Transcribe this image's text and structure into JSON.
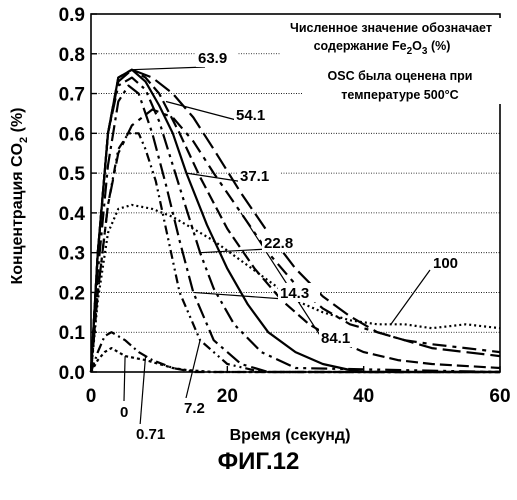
{
  "caption": "ФИГ.12",
  "chart_data": {
    "type": "line",
    "title": "",
    "xlabel": "Время (секунд)",
    "ylabel": "Концентрация CO",
    "ylabel_sub": "2",
    "ylabel_unit": " (%)",
    "xlim": [
      0,
      60
    ],
    "ylim": [
      0,
      0.9
    ],
    "xticks": [
      0,
      20,
      40,
      60
    ],
    "yticks": [
      0.0,
      0.1,
      0.2,
      0.3,
      0.4,
      0.5,
      0.6,
      0.7,
      0.8,
      0.9
    ],
    "ytick_labels": [
      "0.0",
      "0.1",
      "0.2",
      "0.3",
      "0.4",
      "0.5",
      "0.6",
      "0.7",
      "0.8",
      "0.9"
    ],
    "grid": "horizontal",
    "annotation_lines": [
      {
        "pre": "Численное значение обозначает",
        "sub": "",
        "post": ""
      },
      {
        "pre": "содержание Fe",
        "sub": "2",
        "mid": "O",
        "sub2": "3",
        "post": " (%)"
      },
      {
        "pre": "OSC была оценена при",
        "sub": "",
        "post": ""
      },
      {
        "pre": "температуре 500°C",
        "sub": "",
        "post": ""
      }
    ],
    "series": [
      {
        "name": "0",
        "dash": "3,3",
        "x": [
          0,
          1,
          2,
          3,
          5,
          8,
          10,
          12,
          14,
          18,
          60
        ],
        "y": [
          0,
          0.03,
          0.05,
          0.06,
          0.04,
          0.03,
          0.02,
          0.01,
          0.005,
          0,
          0
        ]
      },
      {
        "name": "0.71",
        "dash": "10,4,2,4",
        "x": [
          0,
          1,
          2,
          3,
          5,
          7,
          9,
          12,
          15,
          60
        ],
        "y": [
          0,
          0.05,
          0.09,
          0.1,
          0.08,
          0.05,
          0.03,
          0.01,
          0,
          0
        ]
      },
      {
        "name": "7.2",
        "dash": "9,4,2,4,2,4",
        "x": [
          0,
          1,
          2.5,
          4,
          5.5,
          7,
          8,
          9.5,
          11,
          13,
          16,
          20,
          25,
          60
        ],
        "y": [
          0,
          0.2,
          0.42,
          0.56,
          0.6,
          0.6,
          0.56,
          0.48,
          0.36,
          0.2,
          0.08,
          0.02,
          0,
          0
        ]
      },
      {
        "name": "14.3",
        "dash": "16,5,3,5",
        "x": [
          0,
          1,
          2.5,
          4,
          5.5,
          7,
          9,
          11,
          13,
          15,
          18,
          22,
          26,
          60
        ],
        "y": [
          0,
          0.25,
          0.52,
          0.68,
          0.72,
          0.7,
          0.6,
          0.47,
          0.33,
          0.2,
          0.08,
          0.02,
          0,
          0
        ]
      },
      {
        "name": "22.8",
        "dash": "16,5,3,5,3,5",
        "x": [
          0,
          1,
          2.5,
          4,
          6,
          8,
          10,
          12,
          14,
          16,
          18,
          21,
          25,
          30,
          60
        ],
        "y": [
          0,
          0.3,
          0.6,
          0.72,
          0.74,
          0.71,
          0.63,
          0.52,
          0.41,
          0.3,
          0.21,
          0.12,
          0.05,
          0.01,
          0
        ]
      },
      {
        "name": "37.1",
        "dash": "",
        "x": [
          0,
          1,
          2.5,
          4,
          6,
          8,
          10,
          12,
          14,
          17,
          20,
          23,
          26,
          30,
          34,
          38,
          40,
          60
        ],
        "y": [
          0,
          0.3,
          0.6,
          0.74,
          0.76,
          0.73,
          0.67,
          0.6,
          0.5,
          0.37,
          0.26,
          0.17,
          0.1,
          0.05,
          0.02,
          0.005,
          0,
          0
        ]
      },
      {
        "name": "54.1",
        "dash": "12,5",
        "x": [
          0,
          1,
          2.5,
          4,
          6,
          8,
          10,
          13,
          16,
          20,
          24,
          28,
          32,
          36,
          40,
          45,
          50,
          60
        ],
        "y": [
          0,
          0.3,
          0.6,
          0.74,
          0.76,
          0.74,
          0.7,
          0.6,
          0.49,
          0.36,
          0.26,
          0.18,
          0.12,
          0.08,
          0.05,
          0.03,
          0.02,
          0.01
        ]
      },
      {
        "name": "63.9",
        "dash": "18,6",
        "x": [
          0,
          1,
          2.5,
          4,
          6,
          9,
          12,
          15,
          18,
          22,
          26,
          30,
          34,
          38,
          42,
          46,
          50,
          55,
          60
        ],
        "y": [
          0,
          0.3,
          0.6,
          0.73,
          0.76,
          0.74,
          0.7,
          0.64,
          0.56,
          0.45,
          0.35,
          0.26,
          0.19,
          0.14,
          0.1,
          0.08,
          0.06,
          0.05,
          0.04
        ]
      },
      {
        "name": "84.1",
        "dash": "14,6,4,6",
        "x": [
          0,
          1,
          2.5,
          4,
          6,
          9,
          12,
          15,
          18,
          22,
          26,
          30,
          34,
          38,
          42,
          46,
          50,
          55,
          60
        ],
        "y": [
          0,
          0.2,
          0.42,
          0.55,
          0.62,
          0.66,
          0.64,
          0.58,
          0.5,
          0.4,
          0.3,
          0.22,
          0.16,
          0.12,
          0.1,
          0.08,
          0.07,
          0.06,
          0.05
        ]
      },
      {
        "name": "100",
        "dash": "2,3",
        "x": [
          0,
          1,
          2.5,
          4,
          6,
          9,
          12,
          15,
          18,
          22,
          26,
          30,
          34,
          38,
          42,
          46,
          50,
          55,
          60
        ],
        "y": [
          0,
          0.18,
          0.35,
          0.41,
          0.42,
          0.41,
          0.39,
          0.36,
          0.33,
          0.28,
          0.23,
          0.18,
          0.15,
          0.13,
          0.12,
          0.12,
          0.11,
          0.12,
          0.11
        ]
      }
    ]
  }
}
